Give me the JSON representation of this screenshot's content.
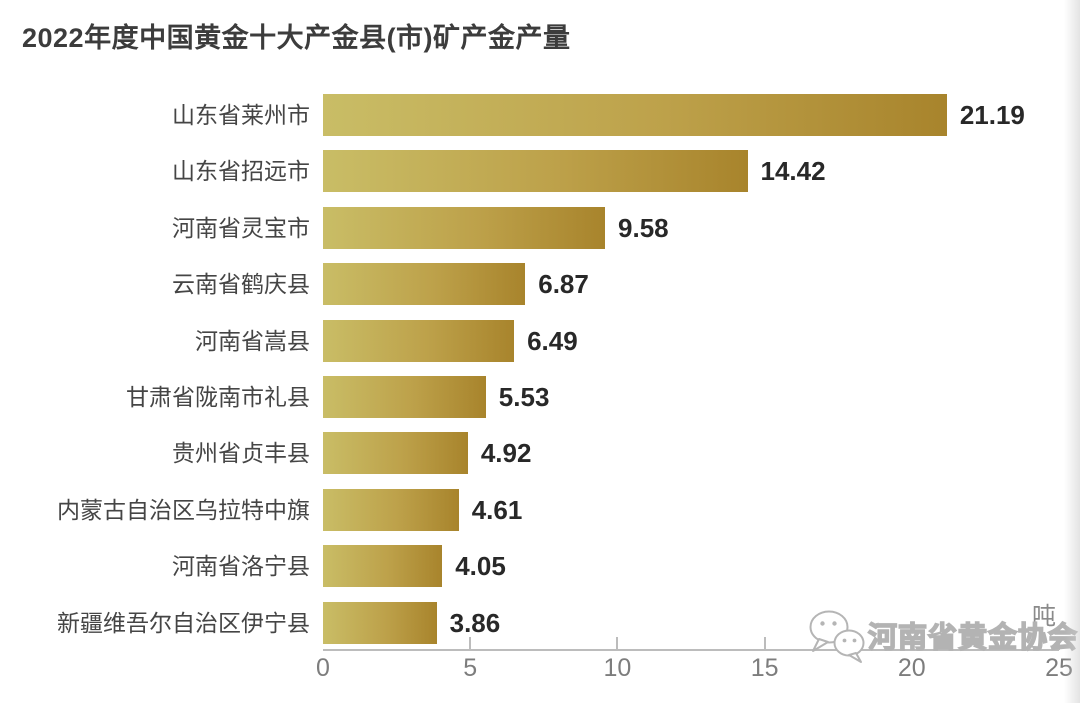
{
  "title": "2022年度中国黄金十大产金县(市)矿产金产量",
  "chart_data": {
    "type": "bar",
    "orientation": "horizontal",
    "title": "2022年度中国黄金十大产金县(市)矿产金产量",
    "categories": [
      "山东省莱州市",
      "山东省招远市",
      "河南省灵宝市",
      "云南省鹤庆县",
      "河南省嵩县",
      "甘肃省陇南市礼县",
      "贵州省贞丰县",
      "内蒙古自治区乌拉特中旗",
      "河南省洛宁县",
      "新疆维吾尔自治区伊宁县"
    ],
    "values": [
      21.19,
      14.42,
      9.58,
      6.87,
      6.49,
      5.53,
      4.92,
      4.61,
      4.05,
      3.86
    ],
    "value_labels": [
      "21.19",
      "14.42",
      "9.58",
      "6.87",
      "6.49",
      "5.53",
      "4.92",
      "4.61",
      "4.05",
      "3.86"
    ],
    "unit": "吨",
    "xlabel": "",
    "ylabel": "",
    "xlim": [
      0,
      25
    ],
    "x_ticks": [
      0,
      5,
      10,
      15,
      20,
      25
    ],
    "grid": false,
    "legend": false,
    "data_labels": true
  },
  "colors": {
    "bar_gradient_start": "#c9bd66",
    "bar_gradient_mid": "#bda14a",
    "bar_gradient_end": "#a8842c",
    "title_text": "#3c3c3c",
    "category_label": "#454545",
    "value_label": "#282828",
    "axis": "#bcbcbc",
    "tick_label": "#7d7d7d",
    "background": "#ffffff"
  },
  "watermark": {
    "icon": "wechat-icon",
    "text": "河南省黄金协会"
  }
}
